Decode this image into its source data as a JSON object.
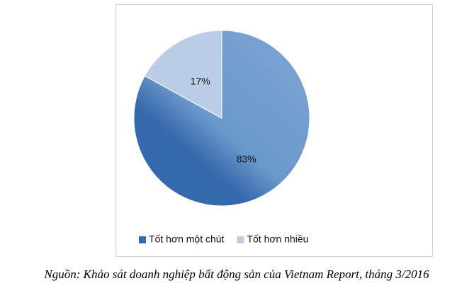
{
  "chart_data": {
    "type": "pie",
    "categories": [
      "Tốt hơn một chút",
      "Tốt hơn nhiều"
    ],
    "values": [
      83,
      17
    ],
    "value_labels": [
      "83%",
      "17%"
    ],
    "colors": [
      "#3569ad",
      "#b9cde6"
    ],
    "legend": "bottom"
  },
  "caption": "Nguồn: Khảo sát doanh nghiệp bất động sản của Vietnam Report, tháng 3/2016"
}
